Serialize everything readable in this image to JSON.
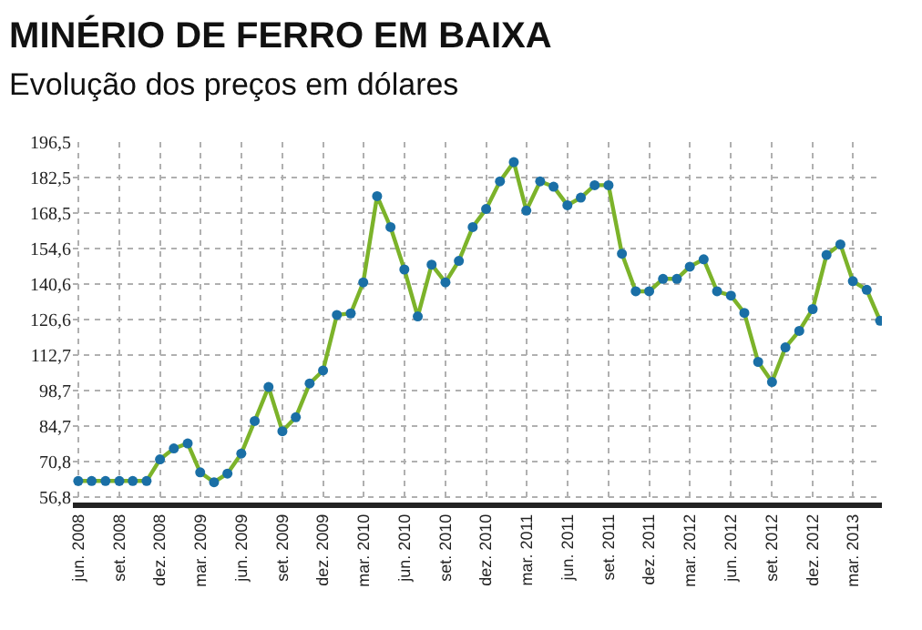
{
  "chart_data": {
    "type": "line",
    "title": "MINÉRIO DE FERRO EM BAIXA",
    "subtitle": "Evolução dos preços em dólares",
    "x": [
      "2008-06",
      "2008-07",
      "2008-08",
      "2008-09",
      "2008-10",
      "2008-11",
      "2008-12",
      "2009-01",
      "2009-02",
      "2009-03",
      "2009-04",
      "2009-05",
      "2009-06",
      "2009-07",
      "2009-08",
      "2009-09",
      "2009-10",
      "2009-11",
      "2009-12",
      "2010-01",
      "2010-02",
      "2010-03",
      "2010-04",
      "2010-05",
      "2010-06",
      "2010-07",
      "2010-08",
      "2010-09",
      "2010-10",
      "2010-11",
      "2010-12",
      "2011-01",
      "2011-02",
      "2011-03",
      "2011-04",
      "2011-05",
      "2011-06",
      "2011-07",
      "2011-08",
      "2011-09",
      "2011-10",
      "2011-11",
      "2011-12",
      "2012-01",
      "2012-02",
      "2012-03",
      "2012-04",
      "2012-05",
      "2012-06",
      "2012-07",
      "2012-08",
      "2012-09",
      "2012-10",
      "2012-11",
      "2012-12",
      "2013-01",
      "2013-02",
      "2013-03",
      "2013-04",
      "2013-05"
    ],
    "series": [
      {
        "color": "#7cb32a",
        "values": [
          63,
          63,
          63,
          63,
          63,
          63,
          71.5,
          75.8,
          77.8,
          66.4,
          62.5,
          65.9,
          73.8,
          86.6,
          100,
          82.6,
          88.1,
          101.4,
          106.5,
          128.4,
          129,
          141.2,
          175.2,
          163,
          146.3,
          127.8,
          148.2,
          141.2,
          149.7,
          163,
          170.1,
          181,
          188.6,
          169.5,
          181,
          178.9,
          171.6,
          174.6,
          179.5,
          179.5,
          152.5,
          137.7,
          137.7,
          142.6,
          142.6,
          147.4,
          150.3,
          137.7,
          136,
          129.2,
          109.9,
          102,
          115.6,
          122.1,
          130.7,
          152,
          156.2,
          141.7,
          138.3,
          126.1
        ]
      }
    ],
    "xlim": [
      "2008-05-20",
      "2013-05-05"
    ],
    "xticks": [
      {
        "value": "2008-06",
        "label": "jun. 2008"
      },
      {
        "value": "2008-09",
        "label": "set. 2008"
      },
      {
        "value": "2008-12",
        "label": "dez. 2008"
      },
      {
        "value": "2009-03",
        "label": "mar. 2009"
      },
      {
        "value": "2009-06",
        "label": "jun. 2009"
      },
      {
        "value": "2009-09",
        "label": "set. 2009"
      },
      {
        "value": "2009-12",
        "label": "dez. 2009"
      },
      {
        "value": "2010-03",
        "label": "mar. 2010"
      },
      {
        "value": "2010-06",
        "label": "jun. 2010"
      },
      {
        "value": "2010-09",
        "label": "set. 2010"
      },
      {
        "value": "2010-12",
        "label": "dez. 2010"
      },
      {
        "value": "2011-03",
        "label": "mar. 2011"
      },
      {
        "value": "2011-06",
        "label": "jun. 2011"
      },
      {
        "value": "2011-09",
        "label": "set. 2011"
      },
      {
        "value": "2011-12",
        "label": "dez. 2011"
      },
      {
        "value": "2012-03",
        "label": "mar. 2012"
      },
      {
        "value": "2012-06",
        "label": "jun. 2012"
      },
      {
        "value": "2012-09",
        "label": "set. 2012"
      },
      {
        "value": "2012-12",
        "label": "dez. 2012"
      },
      {
        "value": "2013-03",
        "label": "mar. 2013"
      }
    ],
    "ylim": [
      54.5,
      196.5
    ],
    "yticks": [
      {
        "value": 56.8,
        "label": "56,8"
      },
      {
        "value": 70.8,
        "label": "70,8"
      },
      {
        "value": 84.7,
        "label": "84,7"
      },
      {
        "value": 98.7,
        "label": "98,7"
      },
      {
        "value": 112.7,
        "label": "112,7"
      },
      {
        "value": 126.6,
        "label": "126,6"
      },
      {
        "value": 140.6,
        "label": "140,6"
      },
      {
        "value": 154.6,
        "label": "154,6"
      },
      {
        "value": 168.5,
        "label": "168,5"
      },
      {
        "value": 182.5,
        "label": "182,5"
      },
      {
        "value": 196.5,
        "label": "196,5"
      }
    ],
    "grid": true,
    "marker": "circle",
    "line_style": "solid"
  }
}
